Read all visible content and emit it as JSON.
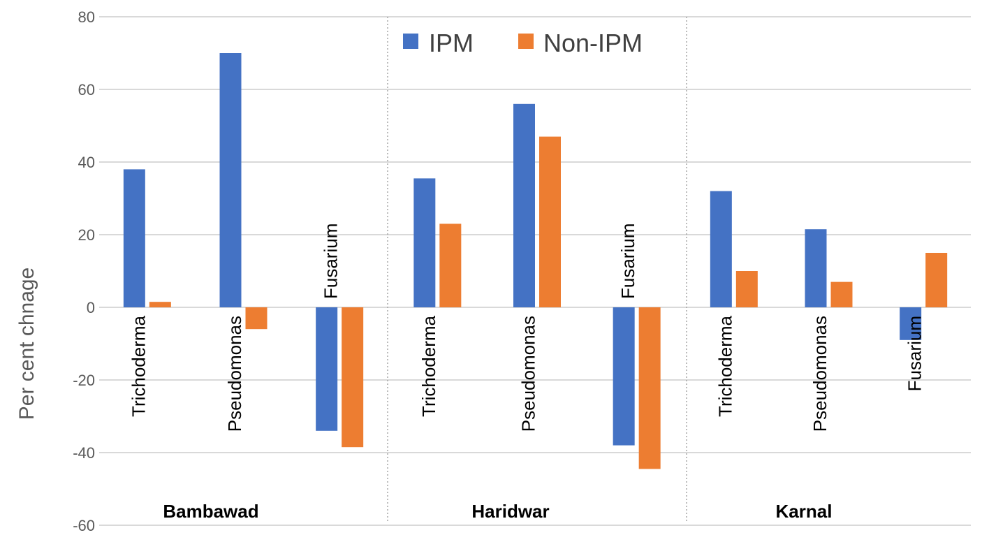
{
  "chart_data": {
    "type": "bar",
    "ylabel": "Per cent chnage",
    "ylim": [
      -60,
      80
    ],
    "yticks": [
      80,
      60,
      40,
      20,
      0,
      -20,
      -40,
      -60
    ],
    "grid": true,
    "legend_position": "top-center",
    "colors": {
      "IPM": "#4472C4",
      "Non-IPM": "#ED7D31",
      "grid": "#D9D9D9",
      "separator": "#A6A6A6"
    },
    "groups": [
      {
        "name": "Bambawad",
        "categories": [
          {
            "label": "Trichoderma",
            "values": [
              38,
              1.5
            ]
          },
          {
            "label": "Pseudomonas",
            "values": [
              70,
              -6
            ]
          },
          {
            "label": "Fusarium",
            "values": [
              -34,
              -38.5
            ]
          }
        ]
      },
      {
        "name": "Haridwar",
        "categories": [
          {
            "label": "Trichoderma",
            "values": [
              35.5,
              23
            ]
          },
          {
            "label": "Pseudomonas",
            "values": [
              56,
              47
            ]
          },
          {
            "label": "Fusarium",
            "values": [
              -38,
              -44.5
            ]
          }
        ]
      },
      {
        "name": "Karnal",
        "categories": [
          {
            "label": "Trichoderma",
            "values": [
              32,
              10
            ]
          },
          {
            "label": "Pseudomonas",
            "values": [
              21.5,
              7
            ]
          },
          {
            "label": "Fusarium",
            "values": [
              -9,
              15
            ]
          }
        ]
      }
    ],
    "series": [
      {
        "name": "IPM"
      },
      {
        "name": "Non-IPM"
      }
    ]
  }
}
